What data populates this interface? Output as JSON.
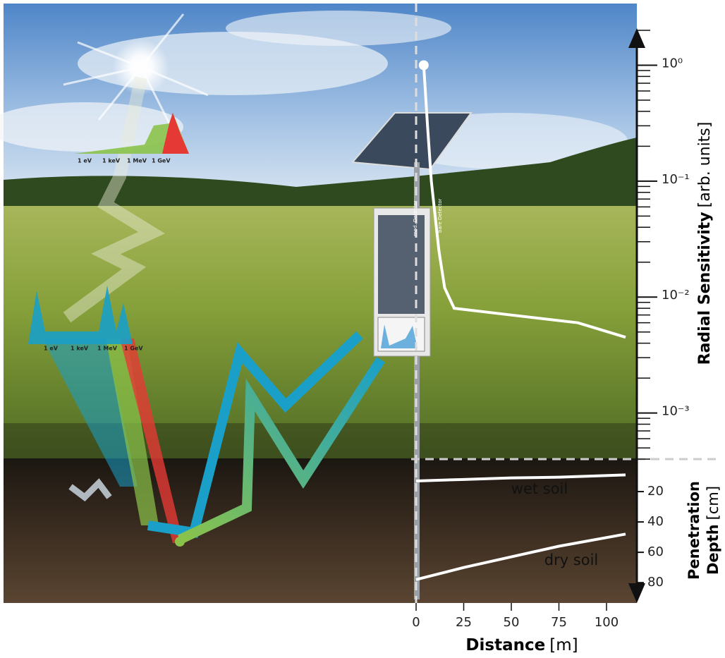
{
  "chart_data": [
    {
      "type": "line",
      "y_label": "Radial Sensitivity",
      "y_unit": "[arb. units]",
      "log_y": true,
      "xlim": [
        0,
        110
      ],
      "ylim": [
        0.0004,
        2
      ],
      "yticks": [
        {
          "value": 1,
          "label": "10⁰"
        },
        {
          "value": 0.1,
          "label": "10⁻¹"
        },
        {
          "value": 0.01,
          "label": "10⁻²"
        },
        {
          "value": 0.001,
          "label": "10⁻³"
        }
      ],
      "yminorticks": [
        0.0004,
        0.0005,
        0.0006,
        0.0007,
        0.0008,
        0.0009,
        0.002,
        0.003,
        0.004,
        0.005,
        0.006,
        0.007,
        0.008,
        0.009,
        0.02,
        0.03,
        0.04,
        0.05,
        0.06,
        0.07,
        0.08,
        0.09,
        0.2,
        0.3,
        0.4,
        0.5,
        0.6,
        0.7,
        0.8,
        0.9,
        2
      ],
      "series": [
        {
          "color": "#ffffff",
          "x": [
            4,
            6,
            8,
            10,
            12,
            15,
            20,
            50,
            85,
            110
          ],
          "values": [
            1,
            0.3,
            0.1,
            0.05,
            0.025,
            0.012,
            0.008,
            0.007,
            0.006,
            0.0045
          ]
        }
      ]
    },
    {
      "type": "line",
      "y_label": [
        "Penetration",
        "Depth"
      ],
      "y_unit": "[cm]",
      "x_label": "Distance",
      "x_unit": "[m]",
      "xlim": [
        0,
        110
      ],
      "xticks": [
        0,
        25,
        50,
        75,
        100
      ],
      "ylim": [
        0,
        92
      ],
      "yticks": [
        20,
        40,
        60,
        80
      ],
      "series": [
        {
          "name": "wet soil",
          "color": "#ffffff",
          "x": [
            0,
            25,
            50,
            75,
            110
          ],
          "values": [
            13,
            12,
            11,
            10.5,
            9
          ]
        },
        {
          "name": "dry soil",
          "color": "#ffffff",
          "x": [
            0,
            25,
            50,
            75,
            110
          ],
          "values": [
            78,
            70,
            63,
            56,
            48
          ]
        }
      ]
    }
  ],
  "illustration": {
    "spectrum_labels": [
      "1 eV",
      "1 keV",
      "1 MeV",
      "1 GeV"
    ],
    "detector_labels": [
      "mod. Detector",
      "bare Detector"
    ]
  }
}
